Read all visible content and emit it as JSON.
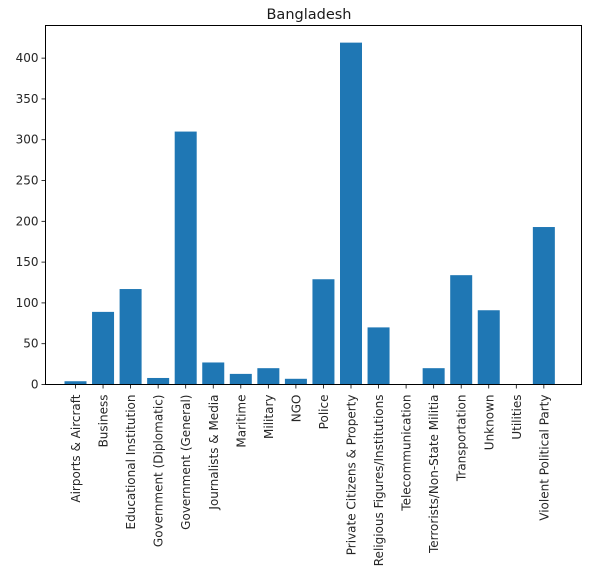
{
  "chart_data": {
    "type": "bar",
    "title": "Bangladesh",
    "xlabel": "",
    "ylabel": "",
    "categories": [
      "Airports & Aircraft",
      "Business",
      "Educational Institution",
      "Government (Diplomatic)",
      "Government (General)",
      "Journalists & Media",
      "Maritime",
      "Military",
      "NGO",
      "Police",
      "Private Citizens & Property",
      "Religious Figures/Institutions",
      "Telecommunication",
      "Terrorists/Non-State Militia",
      "Transportation",
      "Unknown",
      "Utilities",
      "Violent Political Party"
    ],
    "values": [
      4,
      89,
      117,
      8,
      310,
      27,
      13,
      20,
      7,
      129,
      419,
      70,
      0,
      20,
      134,
      91,
      0,
      193
    ],
    "ylim": [
      0,
      440
    ],
    "yticks": [
      0,
      50,
      100,
      150,
      200,
      250,
      300,
      350,
      400
    ],
    "bar_color": "#1f77b4",
    "grid": false,
    "legend": "none"
  }
}
